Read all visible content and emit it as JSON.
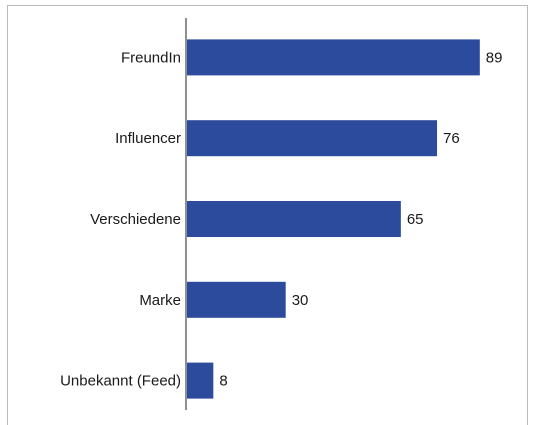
{
  "chart_data": {
    "type": "bar",
    "orientation": "horizontal",
    "categories": [
      "FreundIn",
      "Influencer",
      "Verschiedene",
      "Marke",
      "Unbekannt (Feed)"
    ],
    "values": [
      89,
      76,
      65,
      30,
      8
    ],
    "color": "#2c4b9c"
  }
}
